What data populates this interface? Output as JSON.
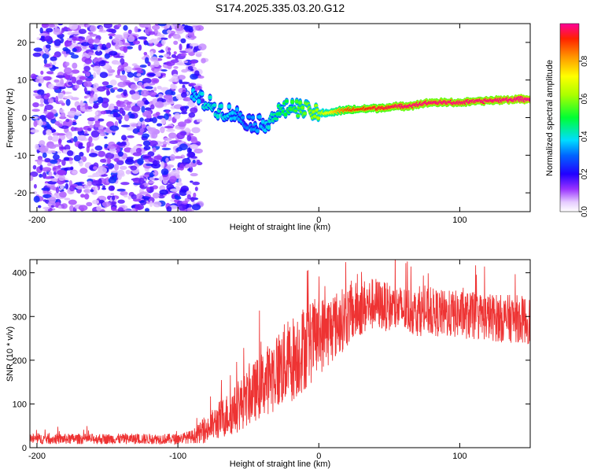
{
  "chart_data": [
    {
      "type": "heatmap",
      "title": "S174.2025.335.03.20.G12",
      "xlabel": "Height of straight line (km)",
      "ylabel": "Frequency (Hz)",
      "xlim": [
        -205,
        150
      ],
      "ylim": [
        -25,
        25
      ],
      "xticks": [
        -200,
        -100,
        0,
        100
      ],
      "yticks": [
        -20,
        -10,
        0,
        10,
        20
      ],
      "colorbar": {
        "label": "Normalized spectral amplitude",
        "range": [
          0.0,
          1.0
        ],
        "ticks": [
          "0.0",
          "0.2",
          "0.4",
          "0.6",
          "0.8"
        ],
        "tick_values": [
          0.0,
          0.2,
          0.4,
          0.6,
          0.8
        ]
      },
      "ridge": {
        "x": [
          -90,
          -80,
          -70,
          -60,
          -50,
          -40,
          -30,
          -20,
          -10,
          0,
          20,
          40,
          60,
          80,
          100,
          120,
          150
        ],
        "frequency": [
          6,
          4,
          2,
          1,
          -1,
          -2,
          1,
          3,
          2,
          1,
          2,
          2.5,
          3,
          4,
          4,
          4.5,
          5
        ],
        "peak_amplitude": [
          0.35,
          0.4,
          0.4,
          0.35,
          0.3,
          0.35,
          0.45,
          0.5,
          0.55,
          0.6,
          0.85,
          0.9,
          0.95,
          0.95,
          0.95,
          0.95,
          1.0
        ]
      },
      "noise_region": {
        "x_range": [
          -205,
          -90
        ],
        "frequency_range": [
          -25,
          25
        ],
        "amplitude_range": [
          0.05,
          0.25
        ]
      }
    },
    {
      "type": "line",
      "xlabel": "Height of straight line (km)",
      "ylabel": "SNR (10 * v/v)",
      "xlim": [
        -205,
        150
      ],
      "ylim": [
        0,
        430
      ],
      "xticks": [
        -200,
        -100,
        0,
        100
      ],
      "yticks": [
        0,
        100,
        200,
        300,
        400
      ],
      "series": [
        {
          "name": "SNR",
          "color": "#ee3333",
          "x": [
            -205,
            -180,
            -150,
            -120,
            -100,
            -90,
            -80,
            -70,
            -60,
            -50,
            -40,
            -30,
            -20,
            -10,
            0,
            10,
            20,
            30,
            40,
            50,
            60,
            70,
            80,
            90,
            100,
            110,
            120,
            130,
            140,
            150
          ],
          "values": [
            20,
            20,
            20,
            20,
            20,
            25,
            40,
            65,
            85,
            115,
            145,
            175,
            200,
            230,
            255,
            275,
            300,
            320,
            330,
            320,
            315,
            310,
            310,
            305,
            305,
            300,
            300,
            295,
            295,
            290
          ],
          "noise_amplitude": [
            12,
            12,
            12,
            12,
            12,
            15,
            30,
            45,
            55,
            65,
            75,
            90,
            100,
            100,
            90,
            80,
            70,
            65,
            60,
            55,
            55,
            55,
            55,
            55,
            55,
            55,
            55,
            55,
            55,
            55
          ]
        }
      ]
    }
  ]
}
